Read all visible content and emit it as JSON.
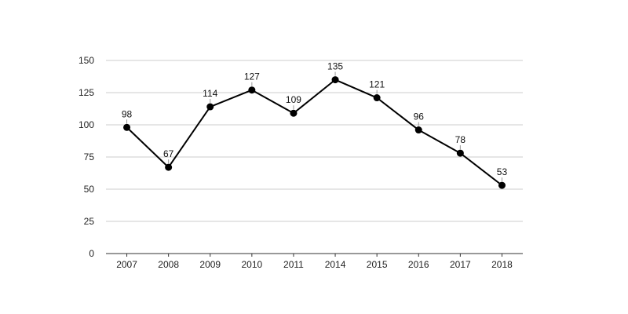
{
  "chart_data": {
    "type": "line",
    "title": "",
    "xlabel": "",
    "ylabel": "",
    "categories": [
      "2007",
      "2008",
      "2009",
      "2010",
      "2011",
      "2014",
      "2015",
      "2016",
      "2017",
      "2018"
    ],
    "series": [
      {
        "values": [
          98,
          67,
          114,
          127,
          109,
          135,
          121,
          96,
          78,
          53
        ],
        "color": "#000000"
      }
    ],
    "ylim": [
      0,
      150
    ],
    "yticks": [
      0,
      25,
      50,
      75,
      100,
      125,
      150
    ],
    "grid": true,
    "legend": "none",
    "data_labels": true,
    "colors": {
      "line": "#000000",
      "marker": "#000000",
      "grid": "#cccccc",
      "axis": "#333333",
      "text": "#222222"
    }
  }
}
